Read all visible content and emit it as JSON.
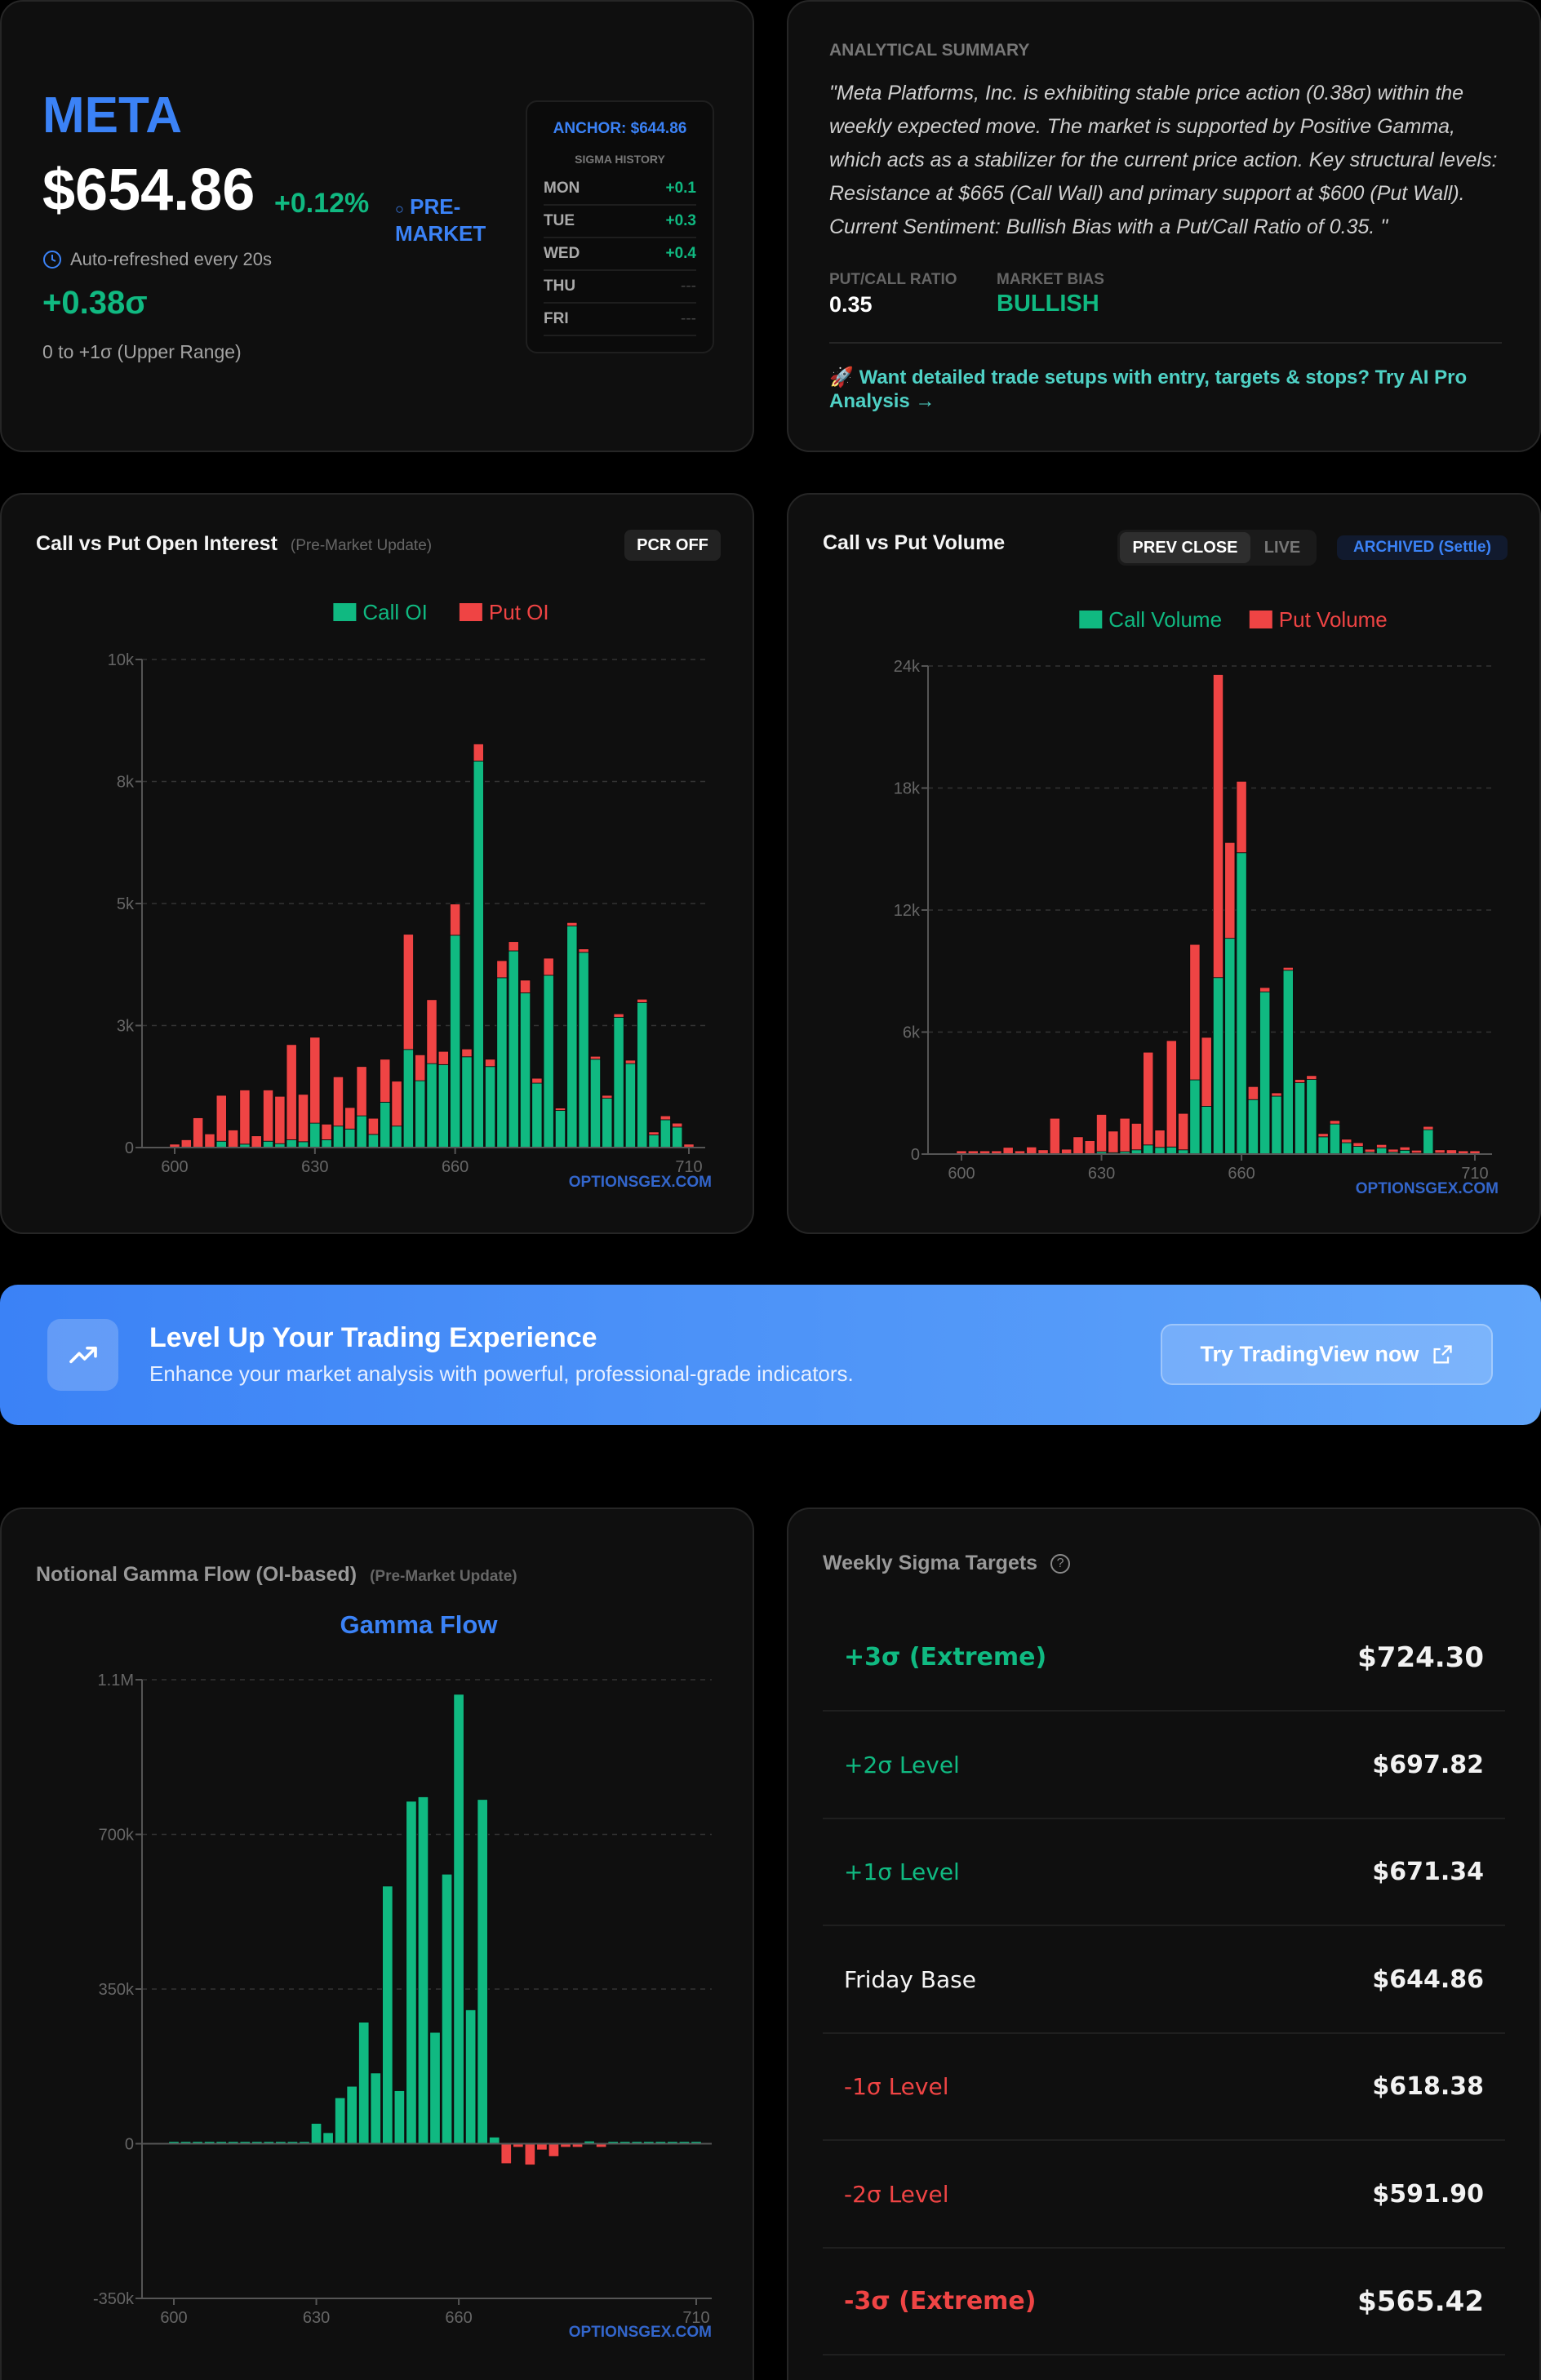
{
  "ticker": {
    "symbol": "META",
    "price": "$654.86",
    "change_pct": "+0.12%",
    "session_icon": "circle-icon",
    "session_label": "PRE-",
    "session_label_2": "MARKET",
    "refresh_icon": "clock-icon",
    "refresh_text": "Auto-refreshed every 20s",
    "sigma": "+0.38σ",
    "range_text": "0 to +1σ (Upper Range)",
    "anchor": "ANCHOR: $644.86",
    "sigma_history_title": "SIGMA HISTORY",
    "sigma_history": [
      {
        "day": "MON",
        "value": "+0.1"
      },
      {
        "day": "TUE",
        "value": "+0.3"
      },
      {
        "day": "WED",
        "value": "+0.4"
      },
      {
        "day": "THU",
        "value": "---"
      },
      {
        "day": "FRI",
        "value": "---"
      }
    ]
  },
  "summary": {
    "title": "ANALYTICAL SUMMARY",
    "text": "\"Meta Platforms, Inc. is exhibiting stable price action (0.38σ) within the weekly expected move. The market is supported by Positive Gamma, which acts as a stabilizer for the current price action. Key structural levels: Resistance at $665 (Call Wall) and primary support at $600 (Put Wall). Current Sentiment: Bullish Bias with a Put/Call Ratio of 0.35. \"",
    "pcr_label": "PUT/CALL RATIO",
    "pcr_value": "0.35",
    "bias_label": "MARKET BIAS",
    "bias_value": "BULLISH",
    "cta_icon": "🚀",
    "cta_text": "Want detailed trade setups with entry, targets & stops? Try AI Pro Analysis →"
  },
  "oi_card": {
    "title": "Call vs Put Open Interest",
    "subtitle": "(Pre-Market Update)",
    "pcr_button": "PCR OFF",
    "watermark": "OPTIONSGEX.COM"
  },
  "vol_card": {
    "title": "Call vs Put Volume",
    "toggle_prev": "PREV CLOSE",
    "toggle_live": "LIVE",
    "archived_badge": "ARCHIVED (Settle)",
    "watermark": "OPTIONSGEX.COM"
  },
  "banner": {
    "icon": "trending-up-icon",
    "title": "Level Up Your Trading Experience",
    "subtitle": "Enhance your market analysis with powerful, professional-grade indicators.",
    "button": "Try TradingView now",
    "button_icon": "external-link-icon"
  },
  "gamma_card": {
    "title": "Notional Gamma Flow (OI-based)",
    "subtitle": "(Pre-Market Update)",
    "watermark": "OPTIONSGEX.COM"
  },
  "targets": {
    "title": "Weekly Sigma Targets",
    "help_icon": "question-circle-icon",
    "rows": [
      {
        "label": "+3σ (Extreme)",
        "value": "$724.30",
        "tone": "up",
        "bold": true
      },
      {
        "label": "+2σ Level",
        "value": "$697.82",
        "tone": "up",
        "bold": false
      },
      {
        "label": "+1σ Level",
        "value": "$671.34",
        "tone": "up",
        "bold": false
      },
      {
        "label": "Friday Base",
        "value": "$644.86",
        "tone": "base",
        "bold": false
      },
      {
        "label": "-1σ Level",
        "value": "$618.38",
        "tone": "down",
        "bold": false
      },
      {
        "label": "-2σ Level",
        "value": "$591.90",
        "tone": "down",
        "bold": false
      },
      {
        "label": "-3σ (Extreme)",
        "value": "$565.42",
        "tone": "down",
        "bold": true
      }
    ]
  },
  "colors": {
    "call": "#10b981",
    "put": "#ef4444",
    "accent": "#3b82f6"
  },
  "chart_data": [
    {
      "type": "bar",
      "stacked": true,
      "grid": true,
      "legend": "top-center",
      "x": [
        600,
        602.5,
        605,
        607.5,
        610,
        612.5,
        615,
        617.5,
        620,
        622.5,
        625,
        627.5,
        630,
        632.5,
        635,
        637.5,
        640,
        642.5,
        645,
        647.5,
        650,
        652.5,
        655,
        657.5,
        660,
        662.5,
        665,
        667.5,
        670,
        672.5,
        675,
        677.5,
        680,
        682.5,
        685,
        687.5,
        690,
        692.5,
        695,
        697.5,
        700,
        702.5,
        705,
        707.5,
        710
      ],
      "x_ticks": [
        600,
        630,
        660,
        710
      ],
      "ylim": [
        0,
        10000
      ],
      "y_ticks": [
        0,
        2500,
        5000,
        7500,
        10000
      ],
      "y_tick_labels": [
        "0",
        "3k",
        "5k",
        "8k",
        "10k"
      ],
      "series": [
        {
          "name": "Call OI",
          "values": [
            0,
            0,
            0,
            0,
            130,
            0,
            70,
            0,
            130,
            80,
            160,
            120,
            500,
            160,
            440,
            380,
            650,
            270,
            930,
            440,
            2010,
            1370,
            1720,
            1700,
            4350,
            1860,
            7920,
            1660,
            3480,
            4030,
            3170,
            1320,
            3530,
            760,
            4540,
            4000,
            1810,
            1010,
            2670,
            1720,
            2970,
            260,
            570,
            420,
            0
          ]
        },
        {
          "name": "Put OI",
          "values": [
            70,
            160,
            610,
            280,
            940,
            360,
            1110,
            240,
            1050,
            970,
            1950,
            970,
            1760,
            320,
            1010,
            440,
            1010,
            330,
            880,
            920,
            2360,
            530,
            1310,
            270,
            640,
            160,
            350,
            150,
            350,
            190,
            260,
            100,
            350,
            50,
            70,
            70,
            60,
            60,
            70,
            70,
            70,
            60,
            80,
            80,
            70
          ]
        }
      ]
    },
    {
      "type": "bar",
      "stacked": true,
      "grid": true,
      "legend": "top-center",
      "x": [
        600,
        602.5,
        605,
        607.5,
        610,
        612.5,
        615,
        617.5,
        620,
        622.5,
        625,
        627.5,
        630,
        632.5,
        635,
        637.5,
        640,
        642.5,
        645,
        647.5,
        650,
        652.5,
        655,
        657.5,
        660,
        662.5,
        665,
        667.5,
        670,
        672.5,
        675,
        677.5,
        680,
        682.5,
        685,
        687.5,
        690,
        692.5,
        695,
        697.5,
        700,
        702.5,
        705,
        707.5,
        710
      ],
      "x_ticks": [
        600,
        630,
        660,
        710
      ],
      "ylim": [
        0,
        24000
      ],
      "y_ticks": [
        0,
        6000,
        12000,
        18000,
        24000
      ],
      "y_tick_labels": [
        "0",
        "6k",
        "12k",
        "18k",
        "24k"
      ],
      "series": [
        {
          "name": "Call Volume",
          "values": [
            0,
            0,
            0,
            0,
            0,
            0,
            0,
            0,
            0,
            0,
            0,
            0,
            120,
            70,
            120,
            210,
            450,
            330,
            350,
            210,
            3650,
            2350,
            8680,
            10610,
            14820,
            2680,
            7980,
            2850,
            9040,
            3510,
            3670,
            850,
            1480,
            560,
            380,
            90,
            310,
            90,
            190,
            50,
            1200,
            50,
            0,
            0,
            0
          ]
        },
        {
          "name": "Put Volume",
          "values": [
            160,
            160,
            160,
            160,
            330,
            160,
            350,
            210,
            1760,
            240,
            850,
            660,
            1830,
            1060,
            1640,
            1300,
            4560,
            850,
            5230,
            1790,
            6660,
            3390,
            14900,
            4710,
            3510,
            640,
            210,
            160,
            140,
            160,
            190,
            160,
            170,
            170,
            180,
            150,
            160,
            150,
            160,
            140,
            160,
            160,
            210,
            160,
            160
          ]
        }
      ]
    },
    {
      "type": "bar",
      "grid": true,
      "title": "Gamma Flow",
      "x": [
        600,
        602.5,
        605,
        607.5,
        610,
        612.5,
        615,
        617.5,
        620,
        622.5,
        625,
        627.5,
        630,
        632.5,
        635,
        637.5,
        640,
        642.5,
        645,
        647.5,
        650,
        652.5,
        655,
        657.5,
        660,
        662.5,
        665,
        667.5,
        670,
        672.5,
        675,
        677.5,
        680,
        682.5,
        685,
        687.5,
        690,
        692.5,
        695,
        697.5,
        700,
        702.5,
        705,
        707.5,
        710
      ],
      "x_ticks": [
        600,
        630,
        660,
        710
      ],
      "ylim": [
        -350000,
        1050000
      ],
      "y_ticks": [
        -350000,
        0,
        350000,
        700000,
        1050000
      ],
      "y_tick_labels": [
        "-350k",
        "0",
        "350k",
        "700k",
        "1.1M"
      ],
      "values": [
        5000,
        5000,
        5000,
        5000,
        5000,
        5000,
        5000,
        5000,
        5000,
        5000,
        5000,
        5000,
        46000,
        25000,
        104000,
        130000,
        275000,
        160000,
        583000,
        120000,
        775000,
        785000,
        252000,
        610000,
        1017000,
        303000,
        779000,
        15000,
        -45000,
        -8000,
        -48000,
        -14000,
        -29000,
        -8000,
        -8000,
        6000,
        -8000,
        5000,
        5000,
        5000,
        5000,
        5000,
        5000,
        5000,
        5000
      ]
    }
  ]
}
